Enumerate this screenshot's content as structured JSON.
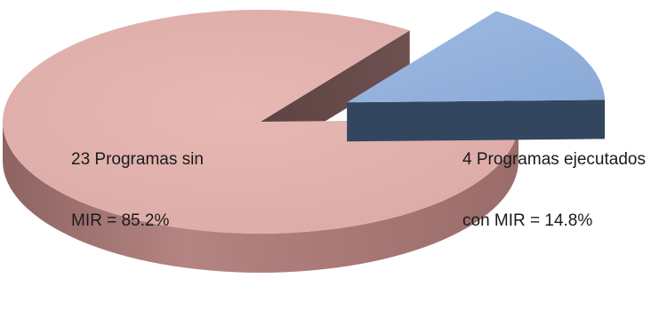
{
  "chart_data": {
    "type": "pie",
    "style": "3d-exploded",
    "slices": [
      {
        "label_line1": "23 Programas sin",
        "label_line2": "MIR = 85.2%",
        "count": 23,
        "percent": 85.2,
        "top_color": "#e2b0ac",
        "side_color": "#a47472",
        "exploded": false
      },
      {
        "label_line1": "4 Programas ejecutados",
        "label_line2": "con MIR = 14.8%",
        "count": 4,
        "percent": 14.8,
        "top_color": "#8eaedb",
        "side_color": "#3a4d66",
        "exploded": true
      }
    ],
    "legend": "none"
  }
}
